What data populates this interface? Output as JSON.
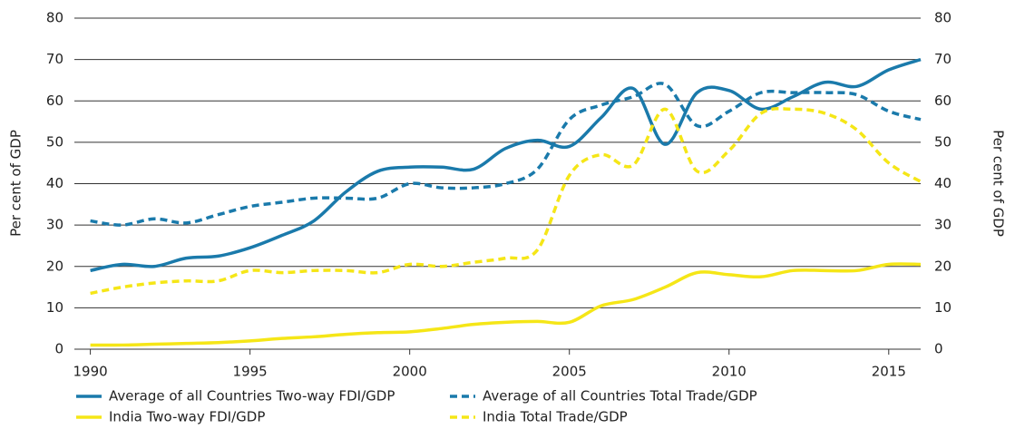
{
  "chart_data": {
    "type": "line",
    "ylabel": "Per cent of GDP",
    "y2label": "Per cent of GDP",
    "x": [
      1990,
      1991,
      1992,
      1993,
      1994,
      1995,
      1996,
      1997,
      1998,
      1999,
      2000,
      2001,
      2002,
      2003,
      2004,
      2005,
      2006,
      2007,
      2008,
      2009,
      2010,
      2011,
      2012,
      2013,
      2014,
      2015,
      2016
    ],
    "xlim": [
      1989.5,
      2016
    ],
    "xticks": [
      1990,
      1995,
      2000,
      2005,
      2010,
      2015
    ],
    "ylim": [
      0,
      80
    ],
    "yticks": [
      0,
      10,
      20,
      30,
      40,
      50,
      60,
      70,
      80
    ],
    "y2lim": [
      0,
      80
    ],
    "y2ticks": [
      0,
      10,
      20,
      30,
      40,
      50,
      60,
      70,
      80
    ],
    "grid": true,
    "legend": "bottom",
    "series": [
      {
        "name": "Average of all Countries Two-way FDI/GDP",
        "color": "#1a7aab",
        "dashed": false,
        "values": [
          19,
          20.5,
          20,
          22,
          22.5,
          24.5,
          27.5,
          31,
          38,
          43,
          44,
          44,
          43.5,
          48.5,
          50.5,
          49,
          56,
          63,
          49.5,
          62,
          62.5,
          58,
          61,
          64.5,
          63.5,
          67.5,
          70
        ]
      },
      {
        "name": "Average of all Countries Total Trade/GDP",
        "color": "#1a7aab",
        "dashed": true,
        "values": [
          31,
          30,
          31.5,
          30.5,
          32.5,
          34.5,
          35.5,
          36.5,
          36.5,
          36.5,
          40,
          39,
          39,
          40,
          43.5,
          55.5,
          59,
          61,
          64,
          54,
          57.5,
          62,
          62,
          62,
          61.5,
          57.5,
          55.5
        ]
      },
      {
        "name": "India Two-way FDI/GDP",
        "color": "#f5e617",
        "dashed": false,
        "values": [
          1,
          1,
          1.2,
          1.4,
          1.6,
          2,
          2.6,
          3,
          3.6,
          4,
          4.2,
          5,
          6,
          6.5,
          6.7,
          6.5,
          10.5,
          12,
          15,
          18.5,
          18,
          17.5,
          19,
          19,
          19,
          20.5,
          20.5
        ]
      },
      {
        "name": "India Total Trade/GDP",
        "color": "#f5e617",
        "dashed": true,
        "values": [
          13.5,
          15,
          16,
          16.5,
          16.5,
          19,
          18.5,
          19,
          19,
          18.5,
          20.5,
          20,
          21,
          22,
          24,
          42,
          47,
          44.5,
          58,
          43,
          48,
          57,
          58,
          57,
          53,
          45,
          40.5
        ]
      }
    ]
  }
}
